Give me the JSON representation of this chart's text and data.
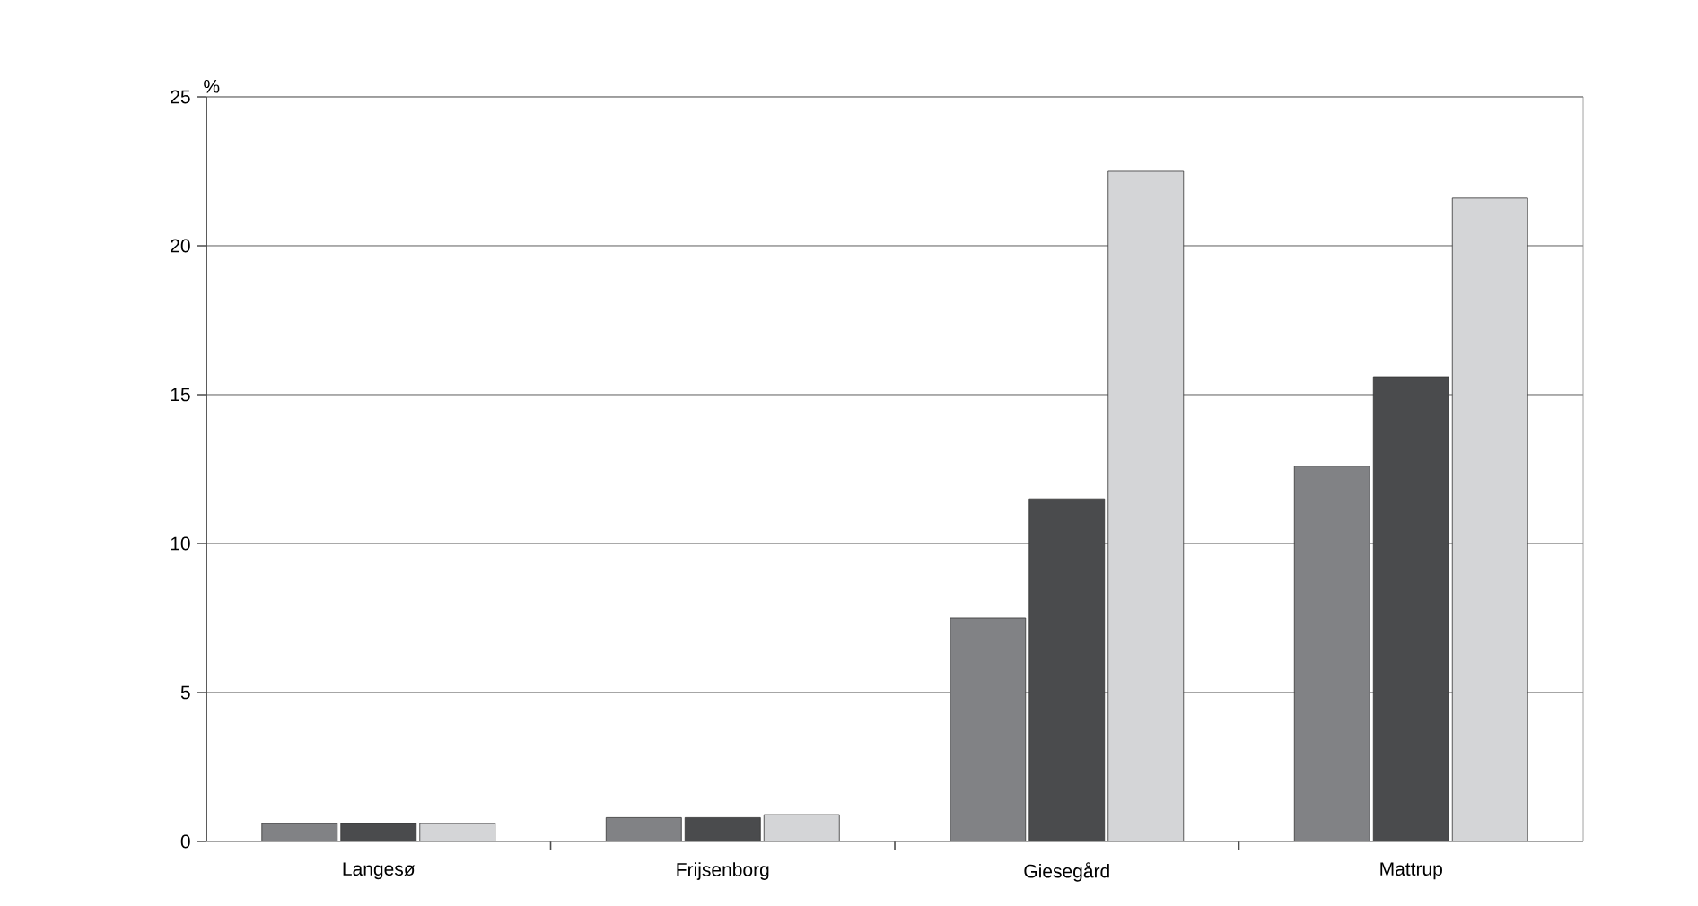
{
  "chart_data": {
    "type": "bar",
    "ylabel": "%",
    "categories": [
      "Langesø",
      "Frijsenborg",
      "Giesegård",
      "Mattrup"
    ],
    "series": [
      {
        "color": "#818285",
        "values": [
          0.6,
          0.8,
          7.5,
          12.6
        ]
      },
      {
        "color": "#4a4b4d",
        "values": [
          0.6,
          0.8,
          11.5,
          15.6
        ]
      },
      {
        "color": "#d4d5d7",
        "values": [
          0.6,
          0.9,
          22.5,
          21.6
        ]
      }
    ],
    "ylim": [
      0,
      25
    ],
    "yticks": [
      0,
      5,
      10,
      15,
      20,
      25
    ],
    "grid": "y"
  }
}
